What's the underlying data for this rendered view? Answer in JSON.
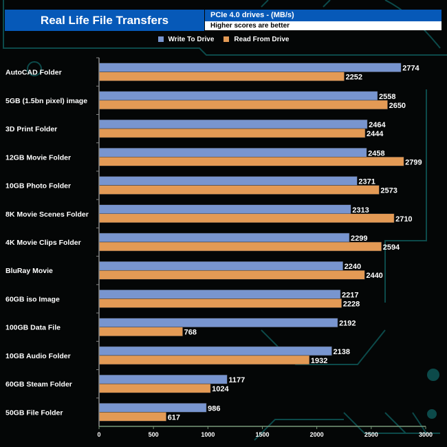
{
  "header": {
    "title": "Real Life File Transfers",
    "subtitle": "PCIe 4.0 drives - (MB/s)",
    "note": "Higher scores are better"
  },
  "chart_data": {
    "type": "bar",
    "orientation": "horizontal",
    "title": "Real Life File Transfers",
    "xlabel": "",
    "ylabel": "",
    "xlim": [
      0,
      3000
    ],
    "xticks": [
      0,
      500,
      1000,
      1500,
      2000,
      2500,
      3000
    ],
    "legend_position": "top-center",
    "categories": [
      "AutoCAD Folder",
      "5GB (1.5bn pixel) image",
      "3D Print Folder",
      "12GB Movie Folder",
      "10GB Photo Folder",
      "8K Movie Scenes Folder",
      "4K Movie Clips Folder",
      "BluRay Movie",
      "60GB iso Image",
      "100GB Data File",
      "10GB Audio Folder",
      "60GB Steam Folder",
      "50GB File Folder"
    ],
    "series": [
      {
        "name": "Write To  Drive",
        "color": "#7895cf",
        "values": [
          2774,
          2558,
          2464,
          2458,
          2371,
          2313,
          2299,
          2240,
          2217,
          2192,
          2138,
          1177,
          986
        ]
      },
      {
        "name": "Read From  Drive",
        "color": "#e39a55",
        "values": [
          2252,
          2650,
          2444,
          2799,
          2573,
          2710,
          2594,
          2440,
          2228,
          768,
          1932,
          1024,
          617
        ]
      }
    ]
  }
}
